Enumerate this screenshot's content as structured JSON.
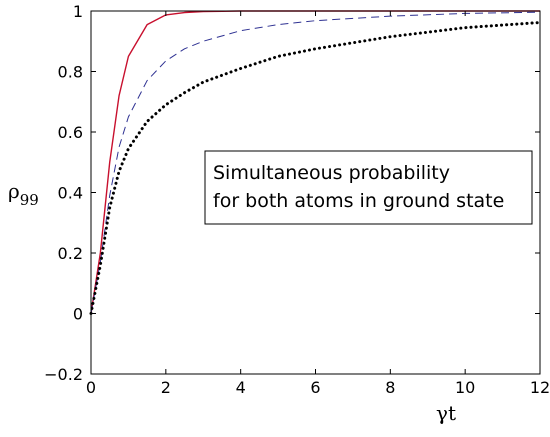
{
  "chart_data": {
    "type": "line",
    "title": "",
    "xlabel": "γt",
    "ylabel": "ρ",
    "ylabel_sub": "99",
    "xlim": [
      0,
      12
    ],
    "ylim": [
      -0.2,
      1
    ],
    "xticks": [
      0,
      2,
      4,
      6,
      8,
      10,
      12
    ],
    "yticks": [
      -0.2,
      0,
      0.2,
      0.4,
      0.6,
      0.8,
      1
    ],
    "xtick_labels": [
      "0",
      "2",
      "4",
      "6",
      "8",
      "10",
      "12"
    ],
    "ytick_labels": [
      "−0.2",
      "0",
      "0.2",
      "0.4",
      "0.6",
      "0.8",
      "1"
    ],
    "grid": false,
    "legend": "none",
    "annotation": {
      "lines": [
        "Simultaneous probability",
        "for both atoms in ground state"
      ]
    },
    "series": [
      {
        "style": "solid",
        "color": "#c8102e",
        "x": [
          0,
          0.25,
          0.5,
          0.75,
          1,
          1.5,
          2,
          2.5,
          3,
          4,
          5,
          6,
          8,
          10,
          12
        ],
        "y": [
          0,
          0.2,
          0.5,
          0.72,
          0.85,
          0.955,
          0.987,
          0.995,
          0.998,
          1,
          1,
          1,
          1,
          1,
          1
        ]
      },
      {
        "style": "dashed",
        "color": "#2e3192",
        "x": [
          0,
          0.25,
          0.5,
          0.75,
          1,
          1.5,
          2,
          2.5,
          3,
          4,
          5,
          6,
          8,
          10,
          12
        ],
        "y": [
          0,
          0.17,
          0.39,
          0.55,
          0.65,
          0.77,
          0.835,
          0.875,
          0.9,
          0.935,
          0.955,
          0.968,
          0.983,
          0.992,
          0.996
        ]
      },
      {
        "style": "dotted",
        "color": "#000000",
        "x": [
          0,
          0.25,
          0.5,
          0.75,
          1,
          1.5,
          2,
          2.5,
          3,
          4,
          5,
          6,
          8,
          10,
          12
        ],
        "y": [
          0,
          0.16,
          0.35,
          0.47,
          0.545,
          0.635,
          0.69,
          0.73,
          0.765,
          0.81,
          0.85,
          0.875,
          0.915,
          0.945,
          0.962
        ]
      }
    ]
  }
}
